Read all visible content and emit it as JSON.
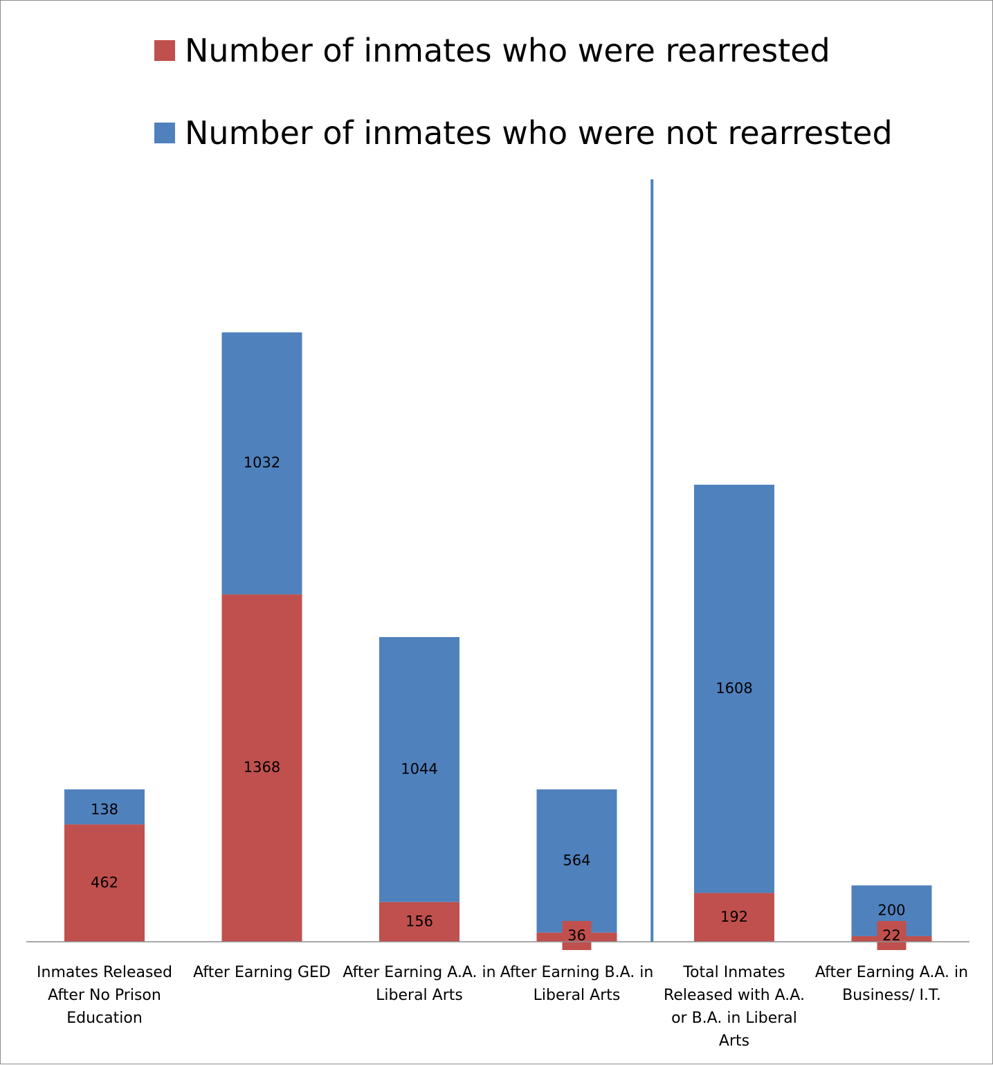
{
  "chart_data": {
    "type": "bar",
    "stacked": true,
    "categories": [
      "Inmates Released After No Prison Education",
      "After Earning GED",
      "After Earning A.A. in Liberal Arts",
      "After Earning B.A. in Liberal Arts",
      "Total Inmates Released with A.A. or B.A. in Liberal Arts",
      "After Earning A.A. in Business/ I.T."
    ],
    "series": [
      {
        "name": "Number of inmates who were rearrested",
        "color": "#c0504d",
        "values": [
          462,
          1368,
          156,
          36,
          192,
          22
        ]
      },
      {
        "name": "Number of inmates who were not rearrested",
        "color": "#4f81bd",
        "values": [
          138,
          1032,
          1044,
          564,
          1608,
          200
        ]
      }
    ],
    "title": "",
    "xlabel": "",
    "ylabel": "",
    "ylim": [
      0,
      3000
    ],
    "grid": false,
    "legend": "top",
    "separator_after_category": 3,
    "separator_color": "#4f81bd"
  }
}
